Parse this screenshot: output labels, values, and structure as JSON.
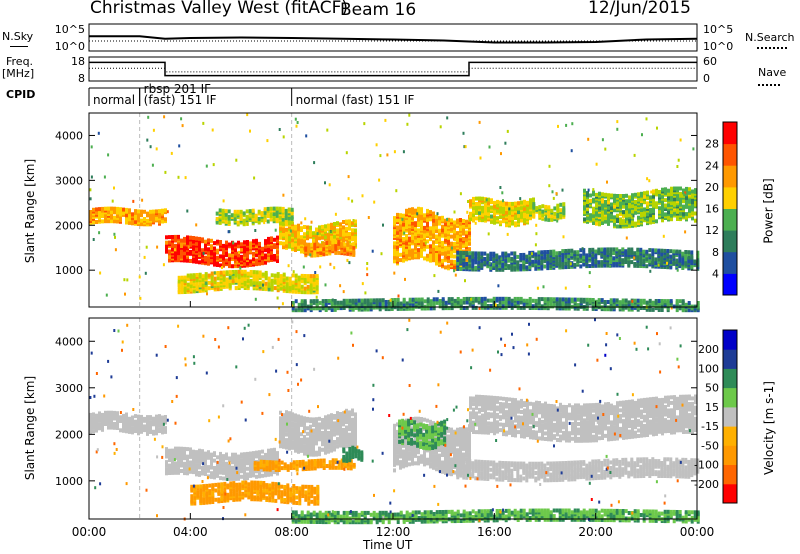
{
  "header": {
    "station": "Christmas Valley West (fitACF)",
    "beam": "Beam 16",
    "date": "12/Jun/2015"
  },
  "left_labels": {
    "nsky": "N.Sky",
    "freq": "Freq.",
    "freq_unit": "[MHz]",
    "cpid": "CPID"
  },
  "right_labels": {
    "nsearch": "N.Search",
    "nave": "Nave"
  },
  "colors": {
    "power_scale": [
      "#0000ff",
      "#1f4fa0",
      "#2e7d5b",
      "#4caf50",
      "#b8d400",
      "#ffd000",
      "#ff9900",
      "#ff5500",
      "#ff0000"
    ],
    "velocity_scale": [
      "#ff0000",
      "#ff6600",
      "#ff9900",
      "#ffb000",
      "#c0c0c0",
      "#6dc94a",
      "#2e8b57",
      "#1e3c96",
      "#0000c8"
    ],
    "ground_scatter": "#c0c0c0"
  },
  "chart_data": [
    {
      "type": "line",
      "panel": "noise",
      "ylabel": "N.Sky",
      "y2label": "N.Search",
      "yticks": [
        "10^5",
        "10^0"
      ],
      "y2ticks": [
        "10^5",
        "10^0"
      ],
      "x_hours": [
        0,
        1,
        2,
        3,
        4,
        6,
        8,
        10,
        12,
        14,
        16,
        18,
        20,
        22,
        24
      ],
      "n_sky_relative": [
        0.55,
        0.55,
        0.55,
        0.45,
        0.48,
        0.5,
        0.48,
        0.45,
        0.42,
        0.38,
        0.3,
        0.3,
        0.32,
        0.42,
        0.45
      ]
    },
    {
      "type": "line",
      "panel": "frequency",
      "ylabel": "Freq. [MHz]",
      "y2label": "Nave",
      "yticks": [
        "18",
        "8"
      ],
      "y2ticks": [
        "60",
        "0"
      ],
      "ylim": [
        8,
        18
      ],
      "freq_steps": [
        {
          "start": 0,
          "end": 3,
          "value": 16
        },
        {
          "start": 3,
          "end": 15,
          "value": 10
        },
        {
          "start": 15,
          "end": 24,
          "value": 16
        }
      ],
      "nave_steps": [
        {
          "start": 0,
          "end": 3,
          "value": 32
        },
        {
          "start": 3,
          "end": 15,
          "value": 22
        },
        {
          "start": 15,
          "end": 24,
          "value": 32
        }
      ]
    },
    {
      "type": "table",
      "panel": "cpid",
      "ylabel": "CPID",
      "segments": [
        {
          "start": 0,
          "label": "normal"
        },
        {
          "start": 2,
          "label": "rbsp 201 IF"
        },
        {
          "start": 2,
          "label": "(fast) 151 IF"
        },
        {
          "start": 8,
          "label": "normal (fast) 151 IF"
        }
      ]
    },
    {
      "type": "heatmap",
      "panel": "power",
      "ylabel": "Slant Range [km]",
      "colorbar_label": "Power [dB]",
      "yticks": [
        1000,
        2000,
        3000,
        4000
      ],
      "ylim": [
        180,
        4500
      ],
      "xlim": [
        0,
        24
      ],
      "colorbar_ticks": [
        4,
        8,
        12,
        16,
        20,
        24,
        28
      ],
      "colorbar_range": [
        0,
        32
      ],
      "echo_bands": [
        {
          "t0": 0.0,
          "t1": 3.0,
          "r0": 2100,
          "r1": 2400,
          "power": 22
        },
        {
          "t0": 3.0,
          "t1": 7.5,
          "r0": 1200,
          "r1": 1750,
          "power": 28
        },
        {
          "t0": 7.5,
          "t1": 10.5,
          "r0": 1500,
          "r1": 2100,
          "power": 20
        },
        {
          "t0": 5.0,
          "t1": 8.0,
          "r0": 2100,
          "r1": 2400,
          "power": 16
        },
        {
          "t0": 8.5,
          "t1": 10.5,
          "r0": 1400,
          "r1": 1650,
          "power": 24
        },
        {
          "t0": 3.5,
          "t1": 9.0,
          "r0": 600,
          "r1": 1000,
          "power": 18
        },
        {
          "t0": 12.0,
          "t1": 15.0,
          "r0": 1200,
          "r1": 2300,
          "power": 22
        },
        {
          "t0": 15.0,
          "t1": 17.5,
          "r0": 2100,
          "r1": 2600,
          "power": 18
        },
        {
          "t0": 17.5,
          "t1": 18.8,
          "r0": 2200,
          "r1": 2500,
          "power": 16
        },
        {
          "t0": 19.5,
          "t1": 24.0,
          "r0": 2100,
          "r1": 2800,
          "power": 14
        },
        {
          "t0": 14.5,
          "t1": 24.0,
          "r0": 1100,
          "r1": 1500,
          "power": 8
        },
        {
          "t0": 8.0,
          "t1": 24.0,
          "r0": 180,
          "r1": 400,
          "power": 10
        }
      ]
    },
    {
      "type": "heatmap",
      "panel": "velocity",
      "ylabel": "Slant Range [km]",
      "colorbar_label": "Velocity [m s-1]",
      "yticks": [
        1000,
        2000,
        3000,
        4000
      ],
      "ylim": [
        180,
        4500
      ],
      "xlim": [
        0,
        24
      ],
      "colorbar_ticks": [
        -200,
        -100,
        -50,
        -15,
        15,
        50,
        100,
        200
      ],
      "echo_bands": [
        {
          "t0": 0.0,
          "t1": 3.0,
          "r0": 2100,
          "r1": 2500,
          "velocity": 0
        },
        {
          "t0": 3.0,
          "t1": 7.5,
          "r0": 1150,
          "r1": 1700,
          "velocity": 0
        },
        {
          "t0": 7.5,
          "t1": 10.5,
          "r0": 1700,
          "r1": 2500,
          "velocity": 0
        },
        {
          "t0": 6.5,
          "t1": 10.5,
          "r0": 1300,
          "r1": 1500,
          "velocity": -40
        },
        {
          "t0": 10.0,
          "t1": 10.8,
          "r0": 1500,
          "r1": 1750,
          "velocity": 60
        },
        {
          "t0": 4.0,
          "t1": 9.0,
          "r0": 600,
          "r1": 1000,
          "velocity": -40
        },
        {
          "t0": 12.0,
          "t1": 15.0,
          "r0": 1300,
          "r1": 2300,
          "velocity": 0
        },
        {
          "t0": 12.2,
          "t1": 14.0,
          "r0": 1800,
          "r1": 2300,
          "velocity": 30
        },
        {
          "t0": 15.0,
          "t1": 24.0,
          "r0": 2000,
          "r1": 2800,
          "velocity": 0
        },
        {
          "t0": 14.5,
          "t1": 24.0,
          "r0": 1100,
          "r1": 1500,
          "velocity": 0
        },
        {
          "t0": 8.0,
          "t1": 24.0,
          "r0": 180,
          "r1": 400,
          "velocity": 30
        }
      ]
    }
  ],
  "x_axis": {
    "ticks": [
      "00:00",
      "04:00",
      "08:00",
      "12:00",
      "16:00",
      "20:00",
      "00:00"
    ],
    "tick_hours": [
      0,
      4,
      8,
      12,
      16,
      20,
      24
    ],
    "label": "Time UT"
  }
}
